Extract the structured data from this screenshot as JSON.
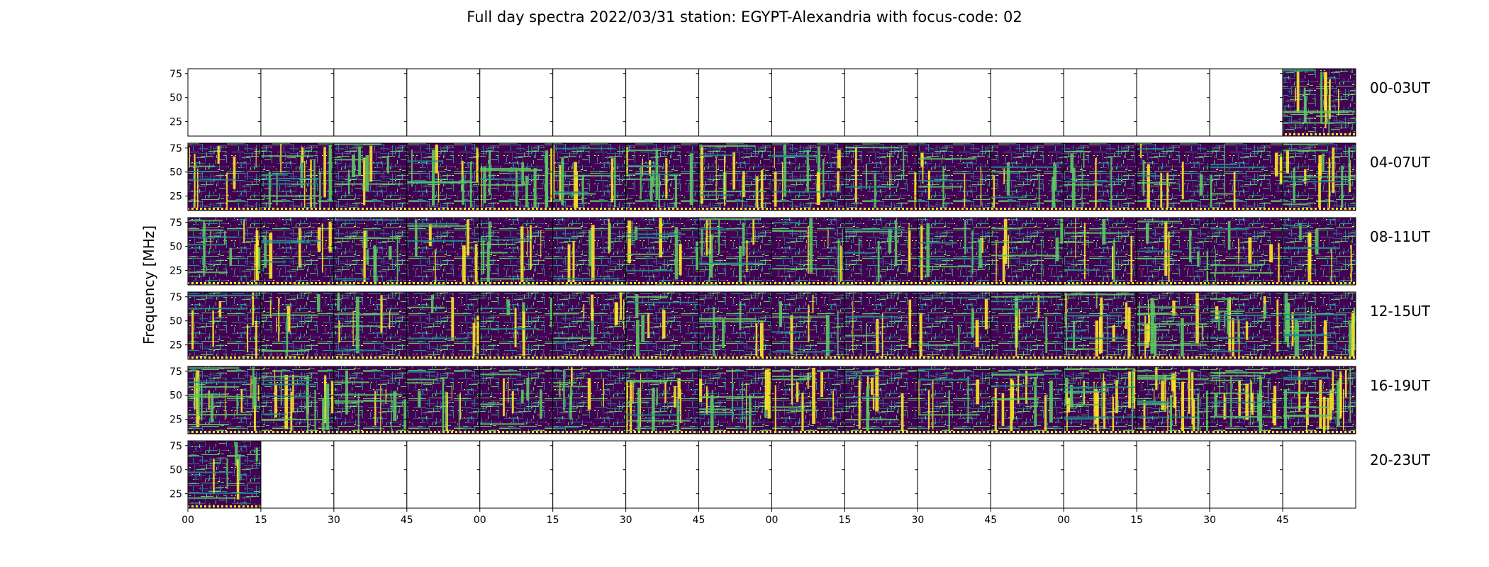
{
  "chart_data": {
    "type": "heatmap",
    "title": "Full day spectra 2022/03/31 station: EGYPT-Alexandria with focus-code: 02",
    "ylabel": "Frequency [MHz]",
    "xlabel": "",
    "y_ticks": [
      25,
      50,
      75
    ],
    "y_range_mhz": [
      10,
      80
    ],
    "x_tick_labels": [
      "00",
      "15",
      "30",
      "45",
      "00",
      "15",
      "30",
      "45",
      "00",
      "15",
      "30",
      "45",
      "00",
      "15",
      "30",
      "45"
    ],
    "panels_per_row": 16,
    "panel_minutes": 15,
    "colormap": [
      "#440154",
      "#3b528b",
      "#21918c",
      "#5ec962",
      "#fde725"
    ],
    "rows": [
      {
        "label": "00-03UT",
        "intensity": [
          0,
          0,
          0,
          0,
          0,
          0,
          0,
          0,
          0,
          0,
          0,
          0,
          0,
          0,
          0,
          0.45
        ]
      },
      {
        "label": "04-07UT",
        "intensity": [
          0.3,
          0.5,
          0.3,
          0.35,
          0.4,
          0.35,
          0.45,
          0.4,
          0.4,
          0.3,
          0.25,
          0.25,
          0.25,
          0.3,
          0.25,
          0.45
        ]
      },
      {
        "label": "08-11UT",
        "intensity": [
          0.45,
          0.25,
          0.3,
          0.3,
          0.35,
          0.25,
          0.35,
          0.4,
          0.25,
          0.25,
          0.25,
          0.3,
          0.25,
          0.25,
          0.25,
          0.25
        ]
      },
      {
        "label": "12-15UT",
        "intensity": [
          0.25,
          0.25,
          0.25,
          0.2,
          0.2,
          0.3,
          0.2,
          0.2,
          0.25,
          0.2,
          0.2,
          0.25,
          0.45,
          0.6,
          0.55,
          0.55
        ]
      },
      {
        "label": "16-19UT",
        "intensity": [
          0.65,
          0.7,
          0.35,
          0.3,
          0.25,
          0.3,
          0.55,
          0.45,
          0.35,
          0.35,
          0.3,
          0.4,
          0.75,
          0.75,
          0.7,
          0.7
        ]
      },
      {
        "label": "20-23UT",
        "intensity": [
          0.25,
          0,
          0,
          0,
          0,
          0,
          0,
          0,
          0,
          0,
          0,
          0,
          0,
          0,
          0,
          0
        ]
      }
    ]
  }
}
